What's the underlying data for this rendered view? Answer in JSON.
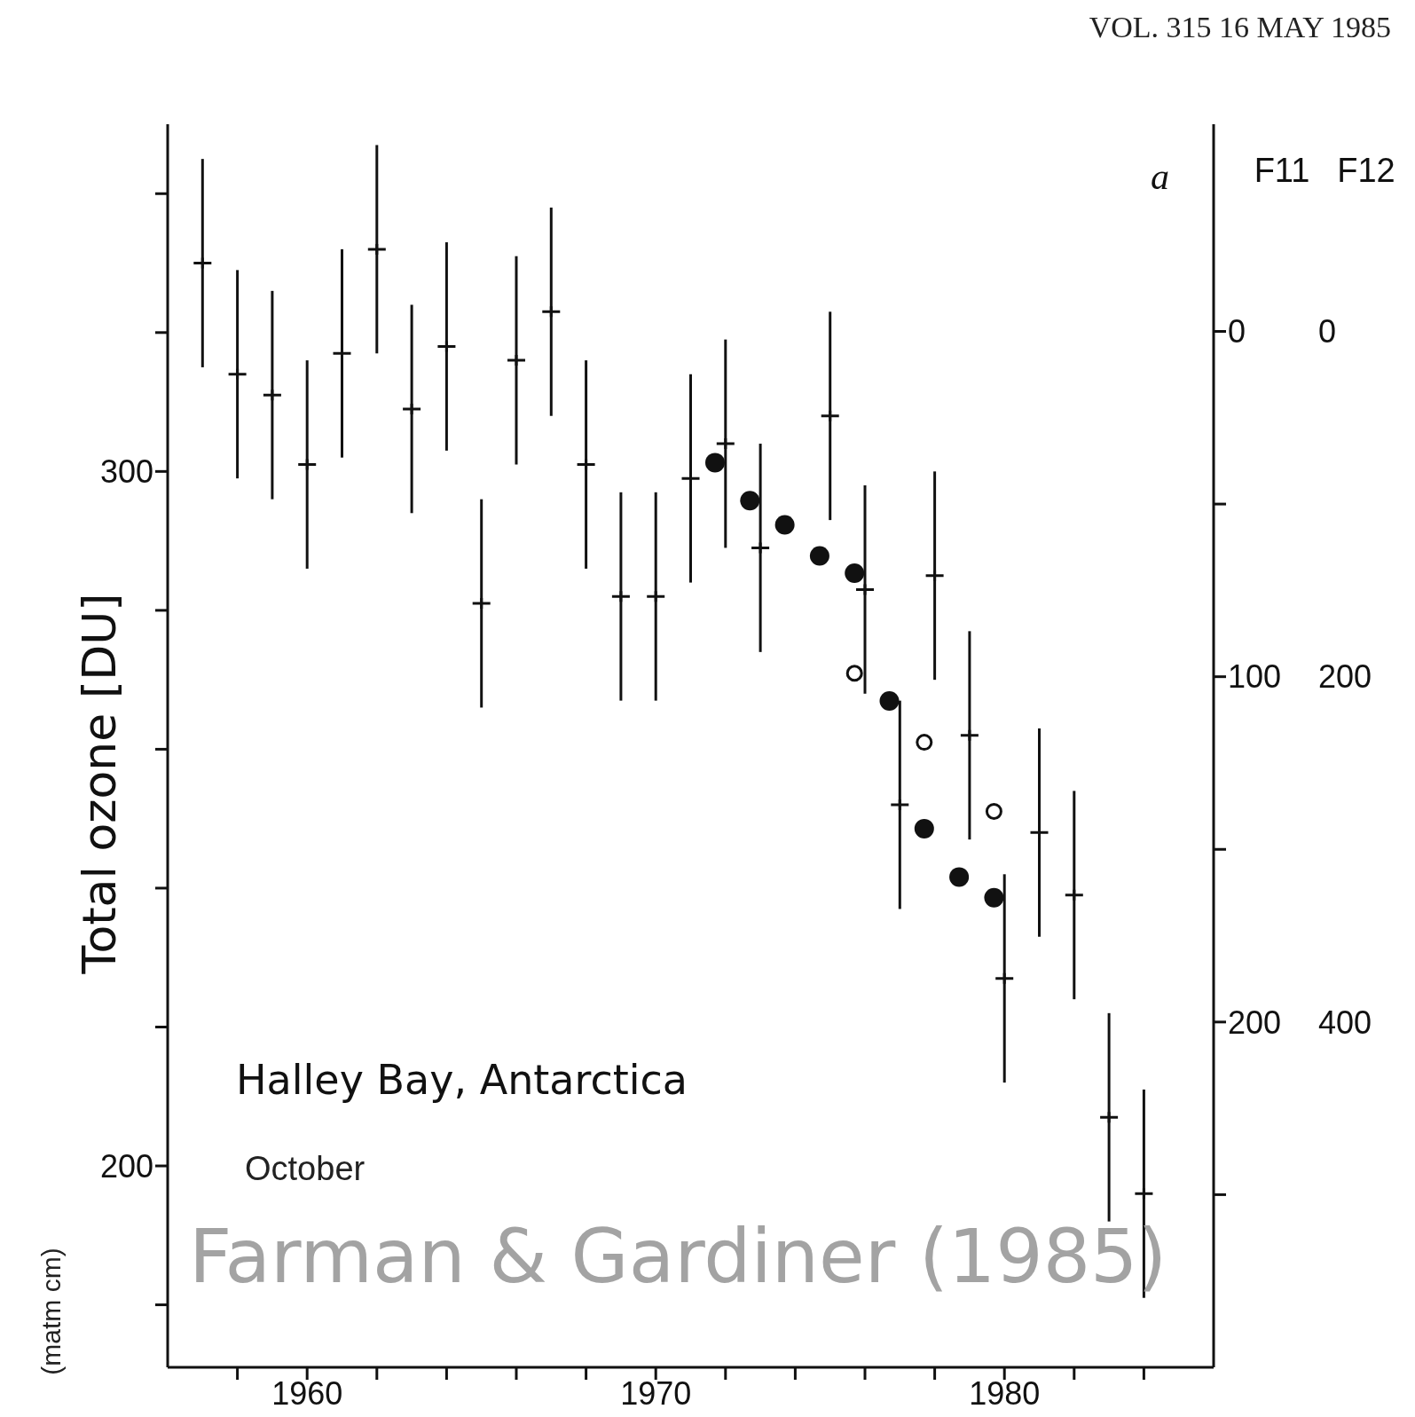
{
  "chart_data": {
    "type": "scatter",
    "ylabel": "Total ozone [DU]",
    "y2label": "F11",
    "y3label": "F12",
    "annotations": [
      "VOL. 315 16 MAY 1985",
      "a",
      "Halley Bay, Antarctica",
      "October",
      "Farman & Gardiner (1985)",
      "(matm cm)"
    ],
    "xlim": [
      1956,
      1986
    ],
    "xticks": [
      {
        "value": 1958,
        "label": null
      },
      1960,
      {
        "value": 1962,
        "label": null
      },
      {
        "value": 1964,
        "label": null
      },
      {
        "value": 1966,
        "label": null
      },
      {
        "value": 1968,
        "label": null
      },
      1970,
      {
        "value": 1972,
        "label": null
      },
      {
        "value": 1974,
        "label": null
      },
      {
        "value": 1976,
        "label": null
      },
      {
        "value": 1978,
        "label": null
      },
      1980,
      {
        "value": 1982,
        "label": null
      },
      {
        "value": 1984,
        "label": null
      }
    ],
    "ylim": [
      171,
      350
    ],
    "yticks": [
      {
        "value": 180,
        "label": null
      },
      200,
      {
        "value": 220,
        "label": null
      },
      {
        "value": 240,
        "label": null
      },
      {
        "value": 260,
        "label": null
      },
      {
        "value": 280,
        "label": null
      },
      300,
      {
        "value": 320,
        "label": null
      },
      {
        "value": 340,
        "label": null
      }
    ],
    "y2lim": [
      300,
      -60
    ],
    "y2ticks": [
      0,
      {
        "value": 50,
        "label": null
      },
      100,
      {
        "value": 150,
        "label": null
      },
      200,
      {
        "value": 250,
        "label": null
      }
    ],
    "y3lim": [
      600,
      -120
    ],
    "y3ticks": [
      0,
      200,
      400
    ],
    "series": [
      {
        "color": "#111111",
        "marker": "cross",
        "x": [
          1957,
          1958,
          1959,
          1960,
          1961,
          1962,
          1963,
          1964,
          1965,
          1966,
          1967,
          1968,
          1969,
          1970,
          1971,
          1972,
          1973,
          1975,
          1976,
          1977,
          1978,
          1979,
          1980,
          1981,
          1982,
          1983,
          1984
        ],
        "values": [
          330,
          314,
          311,
          301,
          317,
          332,
          309,
          318,
          281,
          316,
          323,
          301,
          282,
          282,
          299,
          304,
          289,
          308,
          283,
          252,
          285,
          262,
          227,
          248,
          239,
          207,
          196
        ],
        "errors": [
          15,
          15,
          15,
          15,
          15,
          15,
          15,
          15,
          15,
          15,
          15,
          15,
          15,
          15,
          15,
          15,
          15,
          15,
          15,
          15,
          15,
          15,
          15,
          15,
          15,
          15,
          15
        ]
      },
      {
        "color": "#111111",
        "marker": "circle",
        "axis": "y2",
        "x": [
          1971.7,
          1972.7,
          1973.7,
          1974.7,
          1975.7,
          1976.7,
          1977.7,
          1978.7,
          1979.7
        ],
        "values": [
          38,
          49,
          56,
          65,
          70,
          107,
          144,
          158,
          164
        ]
      },
      {
        "color": "#111111",
        "marker": "circle",
        "axis": "y3",
        "x": [
          1975.7,
          1977.7,
          1979.7
        ],
        "values": [
          198,
          238,
          278
        ]
      }
    ]
  }
}
